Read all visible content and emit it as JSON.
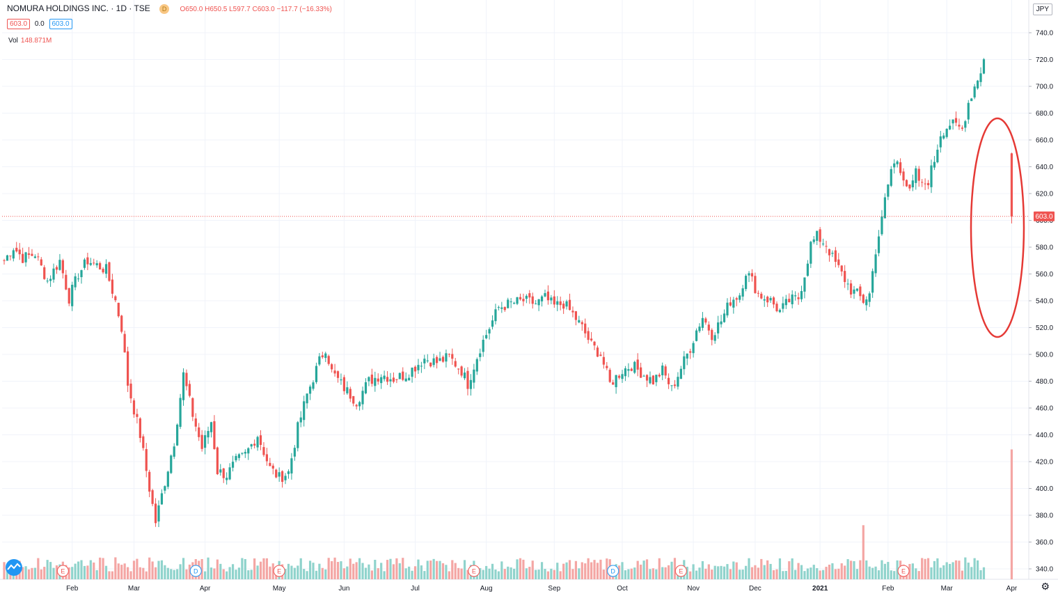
{
  "legend": {
    "title": "NOMURA HOLDINGS INC. · 1D · TSE",
    "badge": "D",
    "open": "O650.0",
    "high": "H650.5",
    "low": "L597.7",
    "close": "C603.0",
    "change": "−117.7 (−16.33%)",
    "price_box": "603.0",
    "spread": "0.0",
    "price_box2": "603.0",
    "vol_label": "Vol",
    "vol_value": "148.871M"
  },
  "currency": "JPY",
  "settings_icon": "gear-icon",
  "colors": {
    "up": "#26a69a",
    "down": "#ef5350",
    "up_vol": "#8fd3cc",
    "down_vol": "#f4a6a4",
    "annotation": "#e53935"
  },
  "chart_data": {
    "type": "candlestick",
    "symbol": "NOMURA HOLDINGS INC.",
    "interval": "1D",
    "exchange": "TSE",
    "currency": "JPY",
    "last_price": 603.0,
    "last_price_label": "603.0",
    "ylim": [
      330,
      745
    ],
    "y_ticks": [
      340,
      360,
      380,
      400,
      420,
      440,
      460,
      480,
      500,
      520,
      540,
      560,
      580,
      600,
      620,
      640,
      660,
      680,
      700,
      720,
      740
    ],
    "y_tick_labels": [
      "340.0",
      "360.0",
      "380.0",
      "400.0",
      "420.0",
      "440.0",
      "460.0",
      "480.0",
      "500.0",
      "520.0",
      "540.0",
      "560.0",
      "580.0",
      "600.0",
      "620.0",
      "640.0",
      "660.0",
      "680.0",
      "700.0",
      "720.0",
      "740.0"
    ],
    "x_tick_labels": [
      {
        "label": "Feb",
        "bar": 22
      },
      {
        "label": "Mar",
        "bar": 42
      },
      {
        "label": "Apr",
        "bar": 65
      },
      {
        "label": "May",
        "bar": 89
      },
      {
        "label": "Jun",
        "bar": 110
      },
      {
        "label": "Jul",
        "bar": 133
      },
      {
        "label": "Aug",
        "bar": 156
      },
      {
        "label": "Sep",
        "bar": 178
      },
      {
        "label": "Oct",
        "bar": 200
      },
      {
        "label": "Nov",
        "bar": 223
      },
      {
        "label": "Dec",
        "bar": 243
      },
      {
        "label": "2021",
        "bar": 264
      },
      {
        "label": "Feb",
        "bar": 286
      },
      {
        "label": "Mar",
        "bar": 305
      },
      {
        "label": "Apr",
        "bar": 326
      }
    ],
    "events": [
      {
        "type": "E",
        "bar": 19
      },
      {
        "type": "D",
        "bar": 62
      },
      {
        "type": "E",
        "bar": 89
      },
      {
        "type": "E",
        "bar": 152
      },
      {
        "type": "D",
        "bar": 197
      },
      {
        "type": "E",
        "bar": 219
      },
      {
        "type": "E",
        "bar": 291
      }
    ],
    "anchors": [
      [
        0,
        570
      ],
      [
        3,
        580
      ],
      [
        6,
        572
      ],
      [
        10,
        575
      ],
      [
        14,
        555
      ],
      [
        18,
        570
      ],
      [
        21,
        542
      ],
      [
        24,
        560
      ],
      [
        27,
        570
      ],
      [
        33,
        563
      ],
      [
        36,
        540
      ],
      [
        38,
        520
      ],
      [
        40,
        478
      ],
      [
        44,
        440
      ],
      [
        47,
        400
      ],
      [
        49,
        375
      ],
      [
        52,
        405
      ],
      [
        55,
        435
      ],
      [
        58,
        485
      ],
      [
        61,
        455
      ],
      [
        64,
        430
      ],
      [
        67,
        450
      ],
      [
        69,
        413
      ],
      [
        72,
        410
      ],
      [
        75,
        420
      ],
      [
        78,
        425
      ],
      [
        82,
        440
      ],
      [
        86,
        415
      ],
      [
        89,
        408
      ],
      [
        92,
        412
      ],
      [
        95,
        445
      ],
      [
        98,
        470
      ],
      [
        102,
        495
      ],
      [
        104,
        505
      ],
      [
        106,
        487
      ],
      [
        110,
        475
      ],
      [
        114,
        465
      ],
      [
        118,
        480
      ],
      [
        122,
        485
      ],
      [
        126,
        482
      ],
      [
        130,
        485
      ],
      [
        136,
        497
      ],
      [
        140,
        494
      ],
      [
        144,
        498
      ],
      [
        148,
        488
      ],
      [
        150,
        478
      ],
      [
        154,
        505
      ],
      [
        158,
        525
      ],
      [
        160,
        535
      ],
      [
        164,
        538
      ],
      [
        168,
        540
      ],
      [
        172,
        538
      ],
      [
        175,
        542
      ],
      [
        178,
        536
      ],
      [
        181,
        538
      ],
      [
        184,
        530
      ],
      [
        187,
        520
      ],
      [
        190,
        507
      ],
      [
        193,
        500
      ],
      [
        196,
        478
      ],
      [
        200,
        488
      ],
      [
        203,
        492
      ],
      [
        207,
        485
      ],
      [
        210,
        480
      ],
      [
        213,
        488
      ],
      [
        216,
        474
      ],
      [
        219,
        490
      ],
      [
        222,
        505
      ],
      [
        224,
        518
      ],
      [
        226,
        528
      ],
      [
        229,
        515
      ],
      [
        232,
        525
      ],
      [
        235,
        540
      ],
      [
        238,
        545
      ],
      [
        240,
        562
      ],
      [
        242,
        555
      ],
      [
        244,
        545
      ],
      [
        248,
        540
      ],
      [
        251,
        532
      ],
      [
        254,
        540
      ],
      [
        257,
        542
      ],
      [
        259,
        560
      ],
      [
        261,
        582
      ],
      [
        263,
        588
      ],
      [
        266,
        582
      ],
      [
        268,
        572
      ],
      [
        271,
        560
      ],
      [
        274,
        548
      ],
      [
        276,
        545
      ],
      [
        278,
        540
      ],
      [
        280,
        545
      ],
      [
        282,
        578
      ],
      [
        284,
        600
      ],
      [
        285,
        615
      ],
      [
        287,
        638
      ],
      [
        289,
        645
      ],
      [
        291,
        633
      ],
      [
        293,
        620
      ],
      [
        295,
        635
      ],
      [
        297,
        625
      ],
      [
        299,
        630
      ],
      [
        301,
        645
      ],
      [
        303,
        665
      ],
      [
        306,
        672
      ],
      [
        308,
        670
      ],
      [
        310,
        668
      ],
      [
        312,
        688
      ],
      [
        314,
        700
      ],
      [
        316,
        712
      ],
      [
        317,
        720
      ]
    ],
    "final_candle": {
      "open": 650.0,
      "high": 650.5,
      "low": 597.7,
      "close": 603.0
    },
    "final_volume_m": 148.871,
    "volume_scale_m": [
      0,
      166
    ],
    "volume_typical_m": 18,
    "annotation": "red-ellipse-around-last-candle"
  }
}
